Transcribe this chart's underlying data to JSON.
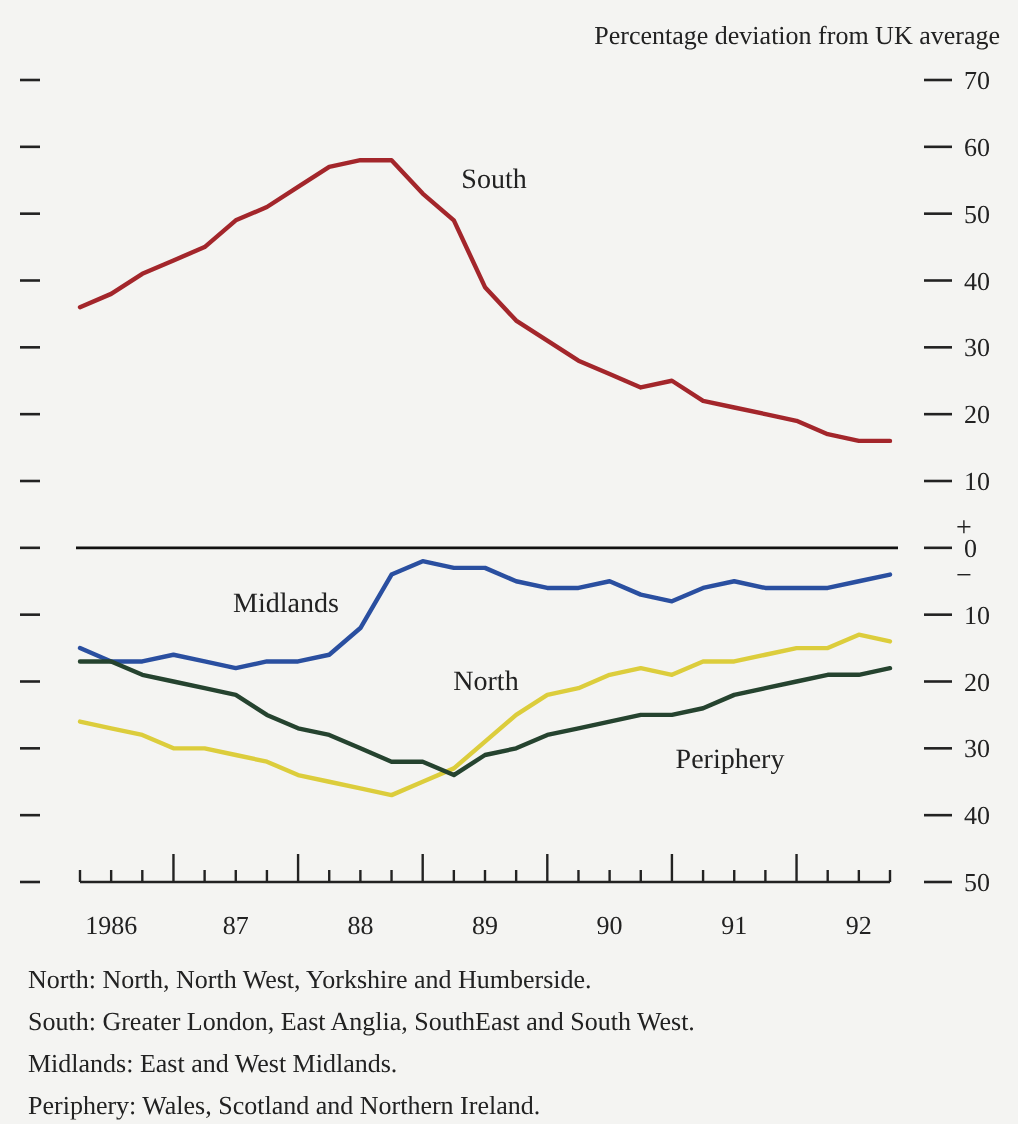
{
  "chart_data": {
    "type": "line",
    "ylabel": "Percentage deviation from UK average",
    "categories": [
      null,
      "1986",
      null,
      null,
      null,
      "87",
      null,
      null,
      null,
      "88",
      null,
      null,
      null,
      "89",
      null,
      null,
      null,
      "90",
      null,
      null,
      null,
      "91",
      null,
      null,
      null,
      "92",
      null
    ],
    "series": [
      {
        "name": "South",
        "color": "#a3262b",
        "values": [
          36,
          38,
          41,
          43,
          45,
          49,
          51,
          54,
          57,
          58,
          58,
          53,
          49,
          39,
          34,
          31,
          28,
          26,
          24,
          25,
          22,
          21,
          20,
          19,
          17,
          16,
          16
        ]
      },
      {
        "name": "Midlands",
        "color": "#2a4fa0",
        "values": [
          -15,
          -17,
          -17,
          -16,
          -17,
          -18,
          -17,
          -17,
          -16,
          -12,
          -4,
          -2,
          -3,
          -3,
          -5,
          -6,
          -6,
          -5,
          -7,
          -8,
          -6,
          -5,
          -6,
          -6,
          -6,
          -5,
          -4
        ]
      },
      {
        "name": "North",
        "color": "#dccd3c",
        "values": [
          -26,
          -27,
          -28,
          -30,
          -30,
          -31,
          -32,
          -34,
          -35,
          -36,
          -37,
          -35,
          -33,
          -29,
          -25,
          -22,
          -21,
          -19,
          -18,
          -19,
          -17,
          -17,
          -16,
          -15,
          -15,
          -13,
          -14
        ]
      },
      {
        "name": "Periphery",
        "color": "#25432f",
        "values": [
          -17,
          -17,
          -19,
          -20,
          -21,
          -22,
          -25,
          -27,
          -28,
          -30,
          -32,
          -32,
          -34,
          -31,
          -30,
          -28,
          -27,
          -26,
          -25,
          -25,
          -24,
          -22,
          -21,
          -20,
          -19,
          -19,
          -18
        ]
      }
    ],
    "ylim": [
      -50,
      70
    ],
    "yticks": [
      70,
      60,
      50,
      40,
      30,
      20,
      10,
      0,
      {
        "value": -10,
        "label": "10"
      },
      {
        "value": -20,
        "label": "20"
      },
      {
        "value": -30,
        "label": "30"
      },
      {
        "value": -40,
        "label": "40"
      },
      {
        "value": -50,
        "label": "50"
      }
    ],
    "ref_lines": [
      {
        "axis": "y",
        "value": 0,
        "color": "#111111"
      }
    ],
    "grid": false,
    "marker": "none",
    "line_style": "solid",
    "annotations": [
      "+",
      "−",
      "North: North, North West, Yorkshire and Humberside.",
      "South: Greater London, East Anglia, SouthEast and South West.",
      "Midlands: East and West Midlands.",
      "Periphery: Wales, Scotland and Northern Ireland."
    ]
  }
}
